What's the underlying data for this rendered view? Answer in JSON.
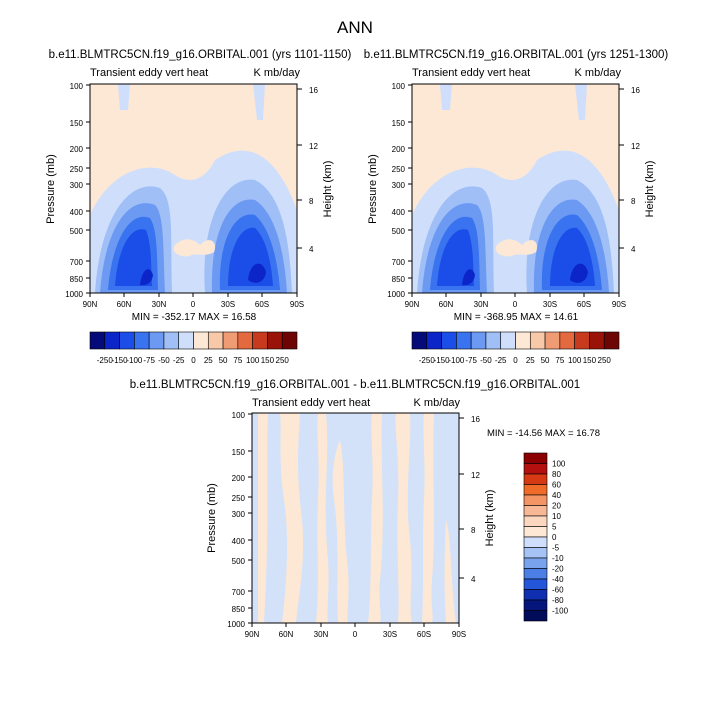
{
  "page_title": "ANN",
  "colors": {
    "scale_a": [
      "#050a79",
      "#0b25c8",
      "#1b4de8",
      "#3a73ef",
      "#6c9af3",
      "#a0bff7",
      "#cfdffb",
      "#fde8d6",
      "#f7c9a8",
      "#ef9c75",
      "#e4693f",
      "#c73a1d",
      "#9a1309",
      "#6d0505"
    ],
    "scale_b": [
      "#050a79",
      "#0b25c8",
      "#1b4de8",
      "#3a73ef",
      "#6c9af3",
      "#a0bff7",
      "#cfdffb",
      "#fde8d6",
      "#f7c9a8",
      "#ef9c75",
      "#e4693f",
      "#c73a1d",
      "#9a1309",
      "#6d0505"
    ]
  },
  "chart_data": [
    {
      "type": "heatmap",
      "title": "b.e11.BLMTRC5CN.f19_g16.ORBITAL.001 (yrs 1101-1150)",
      "subtitle_left": "Transient eddy vert heat",
      "subtitle_right": "K mb/day",
      "xlabel": "",
      "ylabel": "Pressure (mb)",
      "ylabel_right": "Height (km)",
      "x_ticks": [
        "90N",
        "60N",
        "30N",
        "0",
        "30S",
        "60S",
        "90S"
      ],
      "y_ticks": [
        "100",
        "150",
        "200",
        "250",
        "300",
        "400",
        "500",
        "700",
        "850",
        "1000"
      ],
      "y_right_ticks": [
        "16",
        "12",
        "8",
        "4"
      ],
      "stats": "MIN = -352.17   MAX =  16.58",
      "colorbar_labels": [
        "-250",
        "-150",
        "-100",
        "-75",
        "-50",
        "-25",
        "0",
        "25",
        "50",
        "75",
        "100",
        "150",
        "250"
      ],
      "features": [
        {
          "lat": -20,
          "p": 700,
          "level": 4
        },
        {
          "lat": 40,
          "p": 650,
          "level": 1
        },
        {
          "lat": -45,
          "p": 600,
          "level": 2
        },
        {
          "lat": 0,
          "p": 600,
          "level": 8
        }
      ]
    },
    {
      "type": "heatmap",
      "title": "b.e11.BLMTRC5CN.f19_g16.ORBITAL.001 (yrs 1251-1300)",
      "subtitle_left": "Transient eddy vert heat",
      "subtitle_right": "K mb/day",
      "xlabel": "",
      "ylabel": "Pressure (mb)",
      "ylabel_right": "Height (km)",
      "x_ticks": [
        "90N",
        "60N",
        "30N",
        "0",
        "30S",
        "60S",
        "90S"
      ],
      "y_ticks": [
        "100",
        "150",
        "200",
        "250",
        "300",
        "400",
        "500",
        "700",
        "850",
        "1000"
      ],
      "y_right_ticks": [
        "16",
        "12",
        "8",
        "4"
      ],
      "stats": "MIN = -368.95   MAX =  14.61",
      "colorbar_labels": [
        "-250",
        "-150",
        "-100",
        "-75",
        "-50",
        "-25",
        "0",
        "25",
        "50",
        "75",
        "100",
        "150",
        "250"
      ]
    },
    {
      "type": "heatmap",
      "title": "b.e11.BLMTRC5CN.f19_g16.ORBITAL.001 - b.e11.BLMTRC5CN.f19_g16.ORBITAL.001",
      "subtitle_left": "Transient eddy vert heat",
      "subtitle_right": "K mb/day",
      "xlabel": "",
      "ylabel": "Pressure (mb)",
      "ylabel_right": "Height (km)",
      "x_ticks": [
        "90N",
        "60N",
        "30N",
        "0",
        "30S",
        "60S",
        "90S"
      ],
      "y_ticks": [
        "100",
        "150",
        "200",
        "250",
        "300",
        "400",
        "500",
        "700",
        "850",
        "1000"
      ],
      "y_right_ticks": [
        "16",
        "12",
        "8",
        "4"
      ],
      "stats": "MIN = -14.56   MAX =  16.78",
      "colorbar_labels": [
        "100",
        "80",
        "60",
        "40",
        "20",
        "10",
        "5",
        "0",
        "-5",
        "-10",
        "-20",
        "-40",
        "-60",
        "-80",
        "-100"
      ]
    }
  ]
}
